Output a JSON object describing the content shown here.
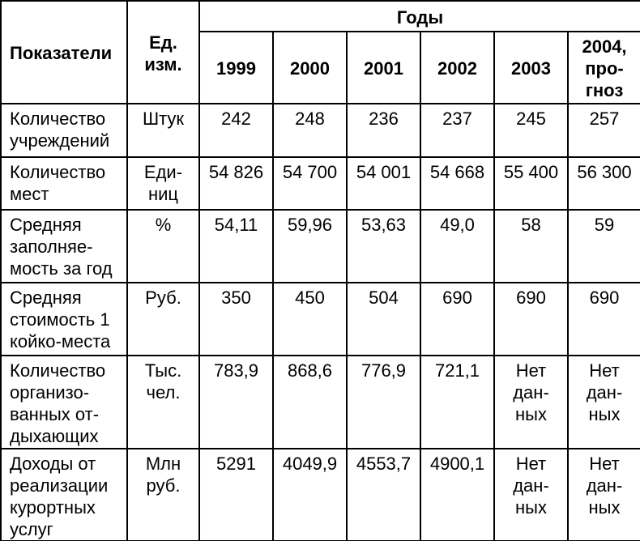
{
  "colors": {
    "border": "#000000",
    "background": "#ffffff",
    "text": "#000000"
  },
  "table": {
    "header": {
      "indicators": "Показатели",
      "unit": "Ед.\nизм.",
      "years_group": "Годы",
      "years": [
        "1999",
        "2000",
        "2001",
        "2002",
        "2003",
        "2004,\nпро-\nгноз"
      ]
    },
    "rows": [
      {
        "indicator": "Количество\nучреждений",
        "unit": "Штук",
        "values": [
          "242",
          "248",
          "236",
          "237",
          "245",
          "257"
        ]
      },
      {
        "indicator": "Количество\nмест",
        "unit": "Еди-\nниц",
        "values": [
          "54 826",
          "54 700",
          "54 001",
          "54 668",
          "55 400",
          "56 300"
        ]
      },
      {
        "indicator": "Средняя\nзаполняе-\nмость за год",
        "unit": "%",
        "values": [
          "54,11",
          "59,96",
          "53,63",
          "49,0",
          "58",
          "59"
        ]
      },
      {
        "indicator": "Средняя\nстоимость 1\nкойко-места",
        "unit": "Руб.",
        "values": [
          "350",
          "450",
          "504",
          "690",
          "690",
          "690"
        ]
      },
      {
        "indicator": "Количество\nорганизо-\nванных от-\nдыхающих",
        "unit": "Тыс.\nчел.",
        "values": [
          "783,9",
          "868,6",
          "776,9",
          "721,1",
          "Нет\nдан-\nных",
          "Нет\nдан-\nных"
        ]
      },
      {
        "indicator": "Доходы от\nреализации\nкурортных\nуслуг",
        "unit": "Млн\nруб.",
        "values": [
          "5291",
          "4049,9",
          "4553,7",
          "4900,1",
          "Нет\nдан-\nных",
          "Нет\nдан-\nных"
        ]
      }
    ]
  },
  "chart_data": {
    "type": "table",
    "title": "Годы",
    "row_header": "Показатели",
    "unit_header": "Ед. изм.",
    "columns": [
      "1999",
      "2000",
      "2001",
      "2002",
      "2003",
      "2004, прогноз"
    ],
    "series": [
      {
        "name": "Количество учреждений",
        "unit": "Штук",
        "values": [
          242,
          248,
          236,
          237,
          245,
          257
        ]
      },
      {
        "name": "Количество мест",
        "unit": "Единиц",
        "values": [
          54826,
          54700,
          54001,
          54668,
          55400,
          56300
        ]
      },
      {
        "name": "Средняя заполняемость за год",
        "unit": "%",
        "values": [
          54.11,
          59.96,
          53.63,
          49.0,
          58,
          59
        ]
      },
      {
        "name": "Средняя стоимость 1 койко-места",
        "unit": "Руб.",
        "values": [
          350,
          450,
          504,
          690,
          690,
          690
        ]
      },
      {
        "name": "Количество организованных отдыхающих",
        "unit": "Тыс. чел.",
        "values": [
          783.9,
          868.6,
          776.9,
          721.1,
          "Нет данных",
          "Нет данных"
        ]
      },
      {
        "name": "Доходы от реализации курортных услуг",
        "unit": "Млн руб.",
        "values": [
          5291,
          4049.9,
          4553.7,
          4900.1,
          "Нет данных",
          "Нет данных"
        ]
      }
    ]
  }
}
